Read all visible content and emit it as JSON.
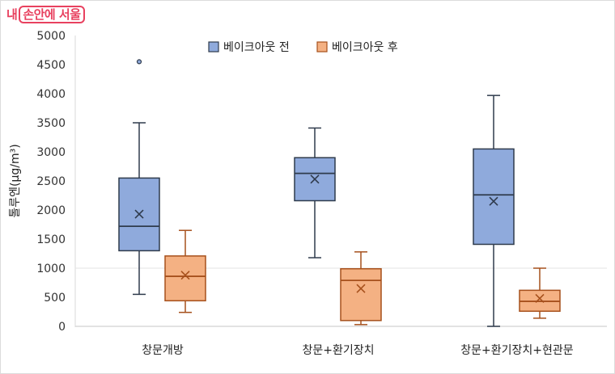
{
  "logo": {
    "prefix": "내",
    "boxed": "손안에 서울"
  },
  "legend": [
    {
      "label": "베이크아웃 전",
      "color": "#8faadc",
      "stroke": "#2f3b4c"
    },
    {
      "label": "베이크아웃 후",
      "color": "#f4b183",
      "stroke": "#a6501c"
    }
  ],
  "chart_data": {
    "type": "box",
    "title": "",
    "xlabel": "",
    "ylabel": "톨루엔(μg/m³)",
    "ylim": [
      0,
      5000
    ],
    "yticks": [
      0,
      500,
      1000,
      1500,
      2000,
      2500,
      3000,
      3500,
      4000,
      4500,
      5000
    ],
    "grid": "horizontal faint at 1000 and 0",
    "legend_position": "top",
    "categories": [
      "창문개방",
      "창문+환기장치",
      "창문+환기장치+현관문"
    ],
    "series": [
      {
        "name": "베이크아웃 전",
        "color": "#8faadc",
        "boxes": [
          {
            "min": 550,
            "q1": 1300,
            "median": 1720,
            "q3": 2550,
            "max": 3500,
            "mean": 1930,
            "outliers": [
              4550
            ]
          },
          {
            "min": 1180,
            "q1": 2160,
            "median": 2630,
            "q3": 2900,
            "max": 3410,
            "mean": 2530,
            "outliers": []
          },
          {
            "min": 0,
            "q1": 1410,
            "median": 2260,
            "q3": 3050,
            "max": 3970,
            "mean": 2150,
            "outliers": []
          }
        ]
      },
      {
        "name": "베이크아웃 후",
        "color": "#f4b183",
        "boxes": [
          {
            "min": 240,
            "q1": 440,
            "median": 860,
            "q3": 1210,
            "max": 1650,
            "mean": 880,
            "outliers": []
          },
          {
            "min": 30,
            "q1": 100,
            "median": 790,
            "q3": 990,
            "max": 1280,
            "mean": 650,
            "outliers": []
          },
          {
            "min": 140,
            "q1": 260,
            "median": 430,
            "q3": 620,
            "max": 1000,
            "mean": 480,
            "outliers": []
          }
        ]
      }
    ]
  }
}
